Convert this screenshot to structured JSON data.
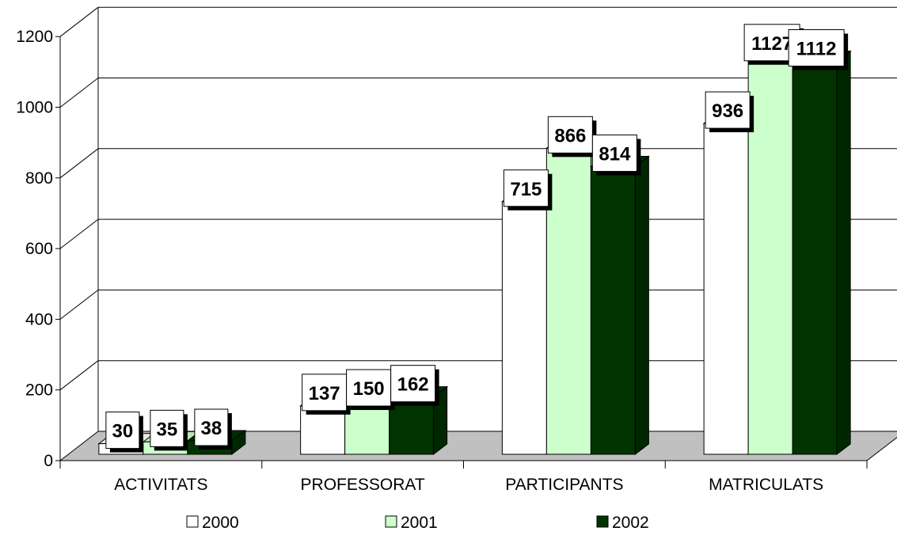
{
  "chart_data": {
    "type": "bar",
    "style": "3d-clustered-column",
    "title": "",
    "xlabel": "",
    "ylabel": "",
    "categories": [
      "ACTIVITATS",
      "PROFESSORAT",
      "PARTICIPANTS",
      "MATRICULATS"
    ],
    "series": [
      {
        "name": "2000",
        "values": [
          30,
          137,
          715,
          936
        ],
        "color": "#ffffff"
      },
      {
        "name": "2001",
        "values": [
          35,
          150,
          866,
          1127
        ],
        "color": "#ccffcc"
      },
      {
        "name": "2002",
        "values": [
          38,
          162,
          814,
          1112
        ],
        "color": "#003300"
      }
    ],
    "ylim": [
      0,
      1200
    ],
    "yticks": [
      "0",
      "200",
      "400",
      "600",
      "800",
      "1000",
      "1200"
    ],
    "grid": true,
    "legend": "bottom",
    "floor_color": "#c0c0c0",
    "wall_color": "#ffffff"
  }
}
